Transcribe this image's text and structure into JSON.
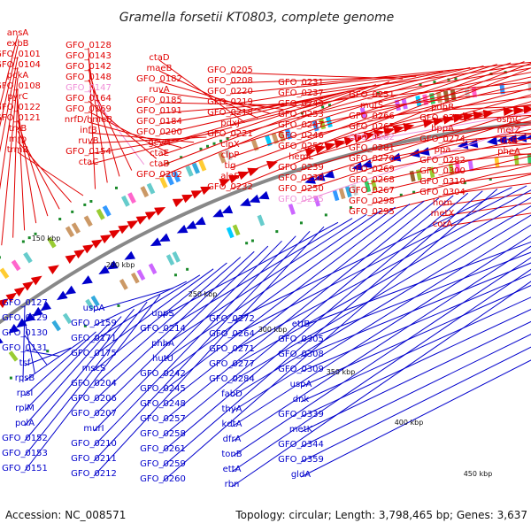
{
  "title": "Gramella forsetii KT0803, complete genome",
  "footer": {
    "accession": "Accession: NC_008571",
    "summary": "Topology: circular; Length: 3,798,465 bp; Genes: 3,637"
  },
  "colors": {
    "forward": "#e00000",
    "reverse": "#0000cc",
    "highlight": "#f090d8",
    "backbone": "#888888"
  },
  "ticks": [
    "150 kbp",
    "200 kbp",
    "250 kbp",
    "300 kbp",
    "350 kbp",
    "400 kbp",
    "450 kbp"
  ],
  "forward_labels": [
    "ansA",
    "exbB",
    "GFO_0101",
    "GFO_0104",
    "pckA",
    "GFO_0108",
    "pyrC",
    "GFO_0122",
    "GFO_0121",
    "trxB",
    "mrp",
    "trmB",
    "GFO_0128",
    "GFO_0143",
    "GFO_0142",
    "GFO_0148",
    "GFO_0147",
    "GFO_0164",
    "GFO_0169",
    "nrfD/hmeB",
    "infB",
    "ruvB",
    "GFO_0154",
    "ctaC",
    "ctaD",
    "maeB",
    "GFO_0182",
    "ruvA",
    "GFO_0185",
    "GFO_0191",
    "GFO_0184",
    "GFO_0200",
    "gcvH",
    "ctaE",
    "ctaB",
    "GFO_0202",
    "GFO_0205",
    "GFO_0208",
    "GFO_0220",
    "GFO_0219",
    "GFO_0218",
    "pdxJ",
    "GFO_0221",
    "clpX",
    "clpP",
    "tig",
    "alaS",
    "GFO_0232",
    "GFO_0231",
    "GFO_0237",
    "GFO_0243",
    "GFO_0253",
    "GFO_0247",
    "GFO_0246",
    "GFO_0252",
    "hemL",
    "GFO_0239",
    "GFO_0238",
    "GFO_0250",
    "GFO_0255",
    "GFO_0251",
    "mutS",
    "GFO_0266",
    "GFO_0265",
    "GFO_0262",
    "GFO_0281",
    "GFO_0270",
    "GFO_0269",
    "GFO_0268",
    "GFO_0267",
    "GFO_0298",
    "GFO_0295",
    "pdhB",
    "GFO_0275",
    "hppA",
    "GFO_0274",
    "ppa",
    "GFO_0282",
    "GFO_0300",
    "GFO_0310",
    "GFO_0304",
    "hom",
    "metX",
    "corA",
    "osmC",
    "metZ",
    "trxB",
    "pheA"
  ],
  "reverse_labels": [
    "GFO_0127",
    "GFO_0129",
    "GFO_0130",
    "GFO_0131",
    "tsf",
    "rpsB",
    "rpsI",
    "rplM",
    "polA",
    "GFO_0152",
    "GFO_0153",
    "GFO_0151",
    "uspA",
    "GFO_0159",
    "GFO_0171",
    "GFO_0175",
    "mscS",
    "GFO_0204",
    "GFO_0206",
    "GFO_0207",
    "murI",
    "GFO_0210",
    "GFO_0211",
    "GFO_0212",
    "uppS",
    "GFO_0214",
    "phhA",
    "hutU",
    "GFO_0242",
    "GFO_0245",
    "GFO_0248",
    "GFO_0257",
    "GFO_0258",
    "GFO_0261",
    "GFO_0259",
    "GFO_0260",
    "GFO_0272",
    "GFO_0264",
    "GFO_0271",
    "GFO_0277",
    "GFO_0284",
    "fabD",
    "thyA",
    "kdtA",
    "dfrA",
    "tonB",
    "ettA",
    "rbn",
    "etfB",
    "GFO_0305",
    "GFO_0308",
    "GFO_0309",
    "uspA",
    "dnk",
    "GFO_0339",
    "metK",
    "GFO_0344",
    "GFO_0359",
    "gldA"
  ],
  "highlighted_labels": [
    "GFO_0147",
    "GFO_0255",
    "GFO_0262"
  ]
}
